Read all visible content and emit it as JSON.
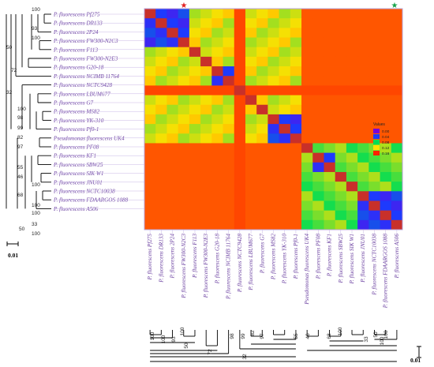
{
  "strains": [
    "P. fluorescens Pf275",
    "P. fluorescens DR133",
    "P. fluorescens 2P24",
    "P. fluorescens FW300-N2C3",
    "P. fluorescens F113",
    "P. fluorescens FW300-N2E3",
    "P. fluorescens G20-18",
    "P. fluorescens NCIMB 11764",
    "P. fluorescens NCTC9428",
    "P. fluorescens LBUM677",
    "P. fluorescens G7",
    "P. fluorescens MS82",
    "P. fluorescens YK-310",
    "P. fluorescens Pf0-1",
    "Pseudomonas fluorescens UK4",
    "P. fluorescens PF08",
    "P. fluorescens KF1",
    "P. fluorescens SBW25",
    "P. fluorescens SIK W1",
    "P. fluorescens JNU01",
    "P. fluorescens NCTC10038",
    "P. fluorescens FDAARGOS 1088",
    "P. fluorescens A506"
  ],
  "bootstrap_left": [
    "100",
    "93",
    "100",
    "50",
    "72",
    "32",
    "100",
    "98",
    "99",
    "82",
    "97",
    "55",
    "46",
    "100",
    "68",
    "100",
    "100",
    "33",
    "50",
    "100"
  ],
  "bootstrap_bottom": [
    "100",
    "100",
    "93",
    "50",
    "72",
    "100",
    "98",
    "99",
    "82",
    "97",
    "55",
    "46",
    "68",
    "100",
    "33",
    "50",
    "100",
    "100",
    "32"
  ],
  "scale_bar_label": "0.01",
  "legend": {
    "title": "Values",
    "labels": [
      "0.00",
      "0.04",
      "0.08",
      "0.12",
      "0.16"
    ],
    "colors": [
      "#7a00d9",
      "#1a3cff",
      "#00dd55",
      "#ffe000",
      "#ff2000"
    ]
  },
  "stars": {
    "red": "#e22020",
    "green": "#16a34a"
  },
  "heatmap_groups": [
    4,
    1,
    1,
    3,
    1,
    1,
    3,
    1,
    2,
    1,
    1,
    4
  ]
}
